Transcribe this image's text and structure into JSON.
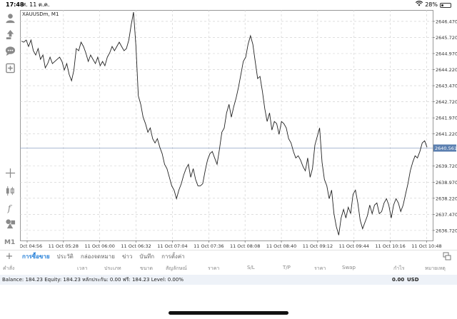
{
  "status_bar": {
    "time": "17:48",
    "date": "ศ. 11 ต.ค.",
    "battery": "28%",
    "battery_level": 0.28
  },
  "left_toolbar": {
    "icons": [
      "account-icon",
      "trade-icon",
      "chat-icon",
      "new-order-icon",
      "crosshair-icon",
      "candles-icon",
      "indicators-icon",
      "objects-icon"
    ],
    "timeframe": "M1"
  },
  "chart": {
    "symbol_title": "XAUUSDm, M1",
    "current_price": "2640.561",
    "colors": {
      "line": "#222222",
      "grid": "#cccccc",
      "axis": "#555555",
      "price_tag": "#5b7fb0"
    }
  },
  "chart_data": {
    "type": "line",
    "title": "XAUUSDm, M1",
    "x_tick_labels": [
      "11 Oct 04:56",
      "11 Oct 05:28",
      "11 Oct 06:00",
      "11 Oct 06:32",
      "11 Oct 07:04",
      "11 Oct 07:36",
      "11 Oct 08:08",
      "11 Oct 08:40",
      "11 Oct 09:12",
      "11 Oct 09:44",
      "11 Oct 10:16",
      "11 Oct 10:48"
    ],
    "y_tick_labels": [
      "2646.470",
      "2645.720",
      "2644.970",
      "2644.220",
      "2643.470",
      "2642.720",
      "2641.970",
      "2641.220",
      "2640.561",
      "2639.720",
      "2638.970",
      "2638.220",
      "2637.470",
      "2636.720"
    ],
    "ylim": [
      2636.25,
      2647.0
    ],
    "current_price": 2640.561,
    "grid": true,
    "series": [
      {
        "values": [
          2645.55,
          2645.5,
          2645.6,
          2645.3,
          2645.6,
          2645.1,
          2644.9,
          2645.2,
          2644.7,
          2644.9,
          2644.3,
          2644.5,
          2644.8,
          2644.5,
          2644.6,
          2644.7,
          2644.8,
          2644.6,
          2644.2,
          2644.5,
          2644.0,
          2643.7,
          2644.2,
          2645.2,
          2645.1,
          2645.5,
          2645.3,
          2645.0,
          2644.6,
          2644.9,
          2644.7,
          2644.5,
          2644.8,
          2644.4,
          2644.6,
          2644.4,
          2644.8,
          2645.0,
          2645.3,
          2645.1,
          2645.3,
          2645.5,
          2645.3,
          2645.1,
          2645.2,
          2645.6,
          2646.3,
          2646.9,
          2645.3,
          2643.0,
          2642.6,
          2642.0,
          2641.7,
          2641.3,
          2641.5,
          2641.0,
          2640.8,
          2641.0,
          2640.6,
          2640.3,
          2639.8,
          2639.6,
          2639.2,
          2638.8,
          2638.6,
          2638.2,
          2638.6,
          2638.9,
          2639.3,
          2639.6,
          2639.8,
          2639.2,
          2639.6,
          2639.1,
          2638.8,
          2638.8,
          2638.9,
          2639.5,
          2640.0,
          2640.3,
          2640.4,
          2640.1,
          2639.8,
          2640.5,
          2641.3,
          2641.5,
          2642.2,
          2642.6,
          2642.0,
          2642.5,
          2642.9,
          2643.4,
          2644.0,
          2644.6,
          2644.8,
          2645.4,
          2645.8,
          2645.4,
          2644.6,
          2643.8,
          2643.9,
          2643.2,
          2642.4,
          2641.8,
          2642.2,
          2641.4,
          2641.8,
          2641.7,
          2641.2,
          2641.8,
          2641.7,
          2641.5,
          2641.0,
          2640.8,
          2640.4,
          2640.1,
          2640.2,
          2640.0,
          2639.7,
          2639.5,
          2640.1,
          2639.2,
          2639.6,
          2640.7,
          2641.1,
          2641.5,
          2639.9,
          2639.1,
          2638.8,
          2638.2,
          2638.6,
          2637.5,
          2636.9,
          2636.5,
          2637.3,
          2637.7,
          2637.3,
          2637.8,
          2637.5,
          2638.4,
          2638.6,
          2638.0,
          2637.2,
          2636.8,
          2637.1,
          2637.4,
          2637.9,
          2637.5,
          2637.9,
          2638.0,
          2637.5,
          2637.6,
          2638.0,
          2638.2,
          2637.9,
          2637.3,
          2637.9,
          2638.2,
          2638.0,
          2637.6,
          2637.9,
          2638.4,
          2638.9,
          2639.5,
          2639.9,
          2640.2,
          2640.1,
          2640.4,
          2640.8,
          2640.9,
          2640.6
        ]
      }
    ]
  },
  "tabs": {
    "items": [
      "การซื้อขาย",
      "ประวัติ",
      "กล่องจดหมาย",
      "ข่าว",
      "บันทึก",
      "การตั้งค่า"
    ]
  },
  "table_headers": {
    "order": "คำสั่ง",
    "time": "เวลา",
    "type": "ประเภท",
    "size": "ขนาด",
    "symbol": "สัญลักษณ์",
    "price": "ราคา",
    "sl": "S/L",
    "tp": "T/P",
    "price2": "ราคา",
    "swap": "Swap",
    "profit": "กำไร",
    "comment": "หมายเหตุ"
  },
  "balance_bar": {
    "text": "Balance: 184.23 Equity: 184.23 หลักประกัน: 0.00 ฟรี: 184.23 Level: 0.00%",
    "profit": "0.00",
    "currency": "USD"
  }
}
